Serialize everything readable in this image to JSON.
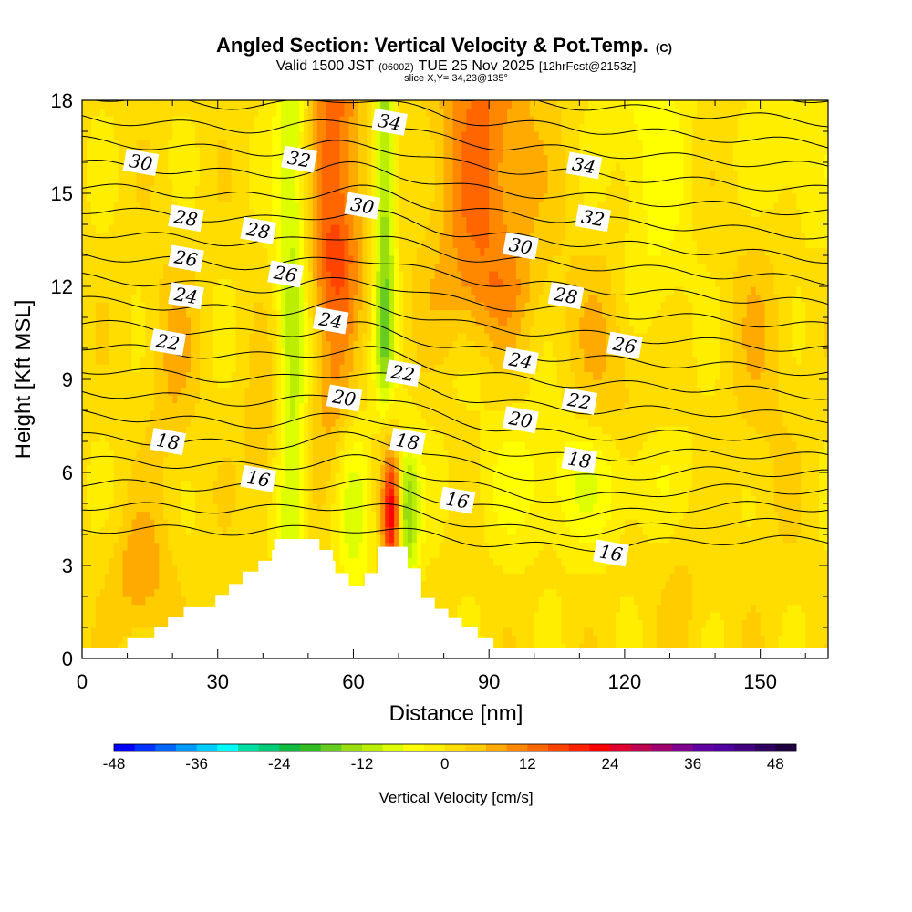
{
  "header": {
    "title_main": "Angled Section: Vertical Velocity & Pot.Temp.",
    "title_units": "(C)",
    "valid_prefix": "Valid 1500 JST",
    "valid_utc": "(0600Z)",
    "valid_date": "TUE 25 Nov 2025",
    "forecast_info": "[12hrFcst@2153z]",
    "slice_info": "slice X,Y= 34,23@135°"
  },
  "chart_data": {
    "type": "heatmap",
    "title": "Angled Section: Vertical Velocity & Pot.Temp.",
    "xlabel": "Distance [nm]",
    "ylabel": "Height [Kft MSL]",
    "xlim": [
      0,
      165
    ],
    "ylim": [
      0,
      18
    ],
    "xticks": [
      "0",
      "30",
      "60",
      "90",
      "120",
      "150"
    ],
    "yticks": [
      "0",
      "3",
      "6",
      "9",
      "12",
      "15",
      "18"
    ],
    "colorbar": {
      "label": "Vertical Velocity [cm/s]",
      "min": -48,
      "max": 51,
      "step": 3,
      "ticks": [
        "-48",
        "-36",
        "-24",
        "-12",
        "0",
        "12",
        "24",
        "36",
        "48"
      ],
      "colors": [
        "#0000ff",
        "#0033ff",
        "#0066ff",
        "#0099ff",
        "#00ccff",
        "#00ffff",
        "#00dda0",
        "#00cc77",
        "#10bb40",
        "#33bb22",
        "#66cc22",
        "#99dd11",
        "#bbee00",
        "#ddff00",
        "#ffff00",
        "#ffee00",
        "#ffdd00",
        "#ffcc00",
        "#ffaa00",
        "#ff8800",
        "#ff6600",
        "#ff4400",
        "#ff2200",
        "#ff0000",
        "#e00030",
        "#c00050",
        "#a00070",
        "#800090",
        "#6000a0",
        "#5000a0",
        "#400080",
        "#300060",
        "#200040"
      ]
    },
    "contour_variable": "Potential Temperature (C)",
    "contour_labels": [
      {
        "value": "34",
        "x": 68,
        "y": 17.3
      },
      {
        "value": "34",
        "x": 111,
        "y": 15.9
      },
      {
        "value": "32",
        "x": 48,
        "y": 16.1
      },
      {
        "value": "32",
        "x": 113,
        "y": 14.2
      },
      {
        "value": "30",
        "x": 13,
        "y": 16.0
      },
      {
        "value": "30",
        "x": 62,
        "y": 14.6
      },
      {
        "value": "30",
        "x": 97,
        "y": 13.3
      },
      {
        "value": "28",
        "x": 23,
        "y": 14.2
      },
      {
        "value": "28",
        "x": 39,
        "y": 13.8
      },
      {
        "value": "28",
        "x": 107,
        "y": 11.7
      },
      {
        "value": "26",
        "x": 23,
        "y": 12.9
      },
      {
        "value": "26",
        "x": 45,
        "y": 12.4
      },
      {
        "value": "26",
        "x": 120,
        "y": 10.1
      },
      {
        "value": "24",
        "x": 23,
        "y": 11.7
      },
      {
        "value": "24",
        "x": 55,
        "y": 10.9
      },
      {
        "value": "24",
        "x": 97,
        "y": 9.6
      },
      {
        "value": "22",
        "x": 19,
        "y": 10.2
      },
      {
        "value": "22",
        "x": 71,
        "y": 9.2
      },
      {
        "value": "22",
        "x": 110,
        "y": 8.3
      },
      {
        "value": "20",
        "x": 58,
        "y": 8.4
      },
      {
        "value": "20",
        "x": 97,
        "y": 7.7
      },
      {
        "value": "18",
        "x": 19,
        "y": 7.0
      },
      {
        "value": "18",
        "x": 72,
        "y": 7.0
      },
      {
        "value": "18",
        "x": 110,
        "y": 6.4
      },
      {
        "value": "16",
        "x": 39,
        "y": 5.8
      },
      {
        "value": "16",
        "x": 83,
        "y": 5.1
      },
      {
        "value": "16",
        "x": 117,
        "y": 3.4
      }
    ],
    "terrain_profile": [
      [
        0,
        0.35
      ],
      [
        10,
        0.35
      ],
      [
        10,
        0.65
      ],
      [
        16,
        0.65
      ],
      [
        16,
        1.0
      ],
      [
        19,
        1.0
      ],
      [
        19,
        1.35
      ],
      [
        22.5,
        1.35
      ],
      [
        22.5,
        1.65
      ],
      [
        29.5,
        1.65
      ],
      [
        29.5,
        2.05
      ],
      [
        32.5,
        2.05
      ],
      [
        32.5,
        2.4
      ],
      [
        35.5,
        2.4
      ],
      [
        35.5,
        2.8
      ],
      [
        39,
        2.8
      ],
      [
        39,
        3.15
      ],
      [
        42,
        3.15
      ],
      [
        42,
        3.5
      ],
      [
        42.5,
        3.5
      ],
      [
        42.5,
        3.85
      ],
      [
        52.5,
        3.85
      ],
      [
        52.5,
        3.5
      ],
      [
        55.5,
        3.5
      ],
      [
        55.5,
        3.15
      ],
      [
        56,
        3.15
      ],
      [
        56,
        2.75
      ],
      [
        59,
        2.75
      ],
      [
        59,
        2.35
      ],
      [
        62.5,
        2.35
      ],
      [
        62.5,
        2.75
      ],
      [
        65.5,
        2.75
      ],
      [
        65.5,
        3.6
      ],
      [
        72,
        3.6
      ],
      [
        72,
        2.9
      ],
      [
        75,
        2.9
      ],
      [
        75,
        1.95
      ],
      [
        78,
        1.95
      ],
      [
        78,
        1.6
      ],
      [
        81,
        1.6
      ],
      [
        81,
        1.3
      ],
      [
        84,
        1.3
      ],
      [
        84,
        1.0
      ],
      [
        87.5,
        1.0
      ],
      [
        87.5,
        0.65
      ],
      [
        91,
        0.65
      ],
      [
        91,
        0.35
      ],
      [
        165,
        0.35
      ]
    ]
  }
}
